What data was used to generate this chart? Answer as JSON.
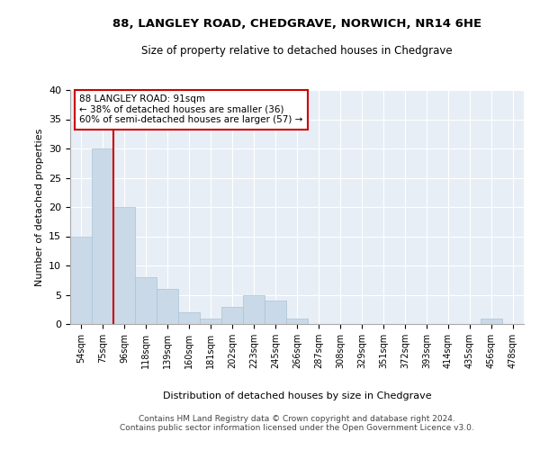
{
  "title1": "88, LANGLEY ROAD, CHEDGRAVE, NORWICH, NR14 6HE",
  "title2": "Size of property relative to detached houses in Chedgrave",
  "xlabel": "Distribution of detached houses by size in Chedgrave",
  "ylabel": "Number of detached properties",
  "categories": [
    "54sqm",
    "75sqm",
    "96sqm",
    "118sqm",
    "139sqm",
    "160sqm",
    "181sqm",
    "202sqm",
    "223sqm",
    "245sqm",
    "266sqm",
    "287sqm",
    "308sqm",
    "329sqm",
    "351sqm",
    "372sqm",
    "393sqm",
    "414sqm",
    "435sqm",
    "456sqm",
    "478sqm"
  ],
  "values": [
    15,
    30,
    20,
    8,
    6,
    2,
    1,
    3,
    5,
    4,
    1,
    0,
    0,
    0,
    0,
    0,
    0,
    0,
    0,
    1,
    0
  ],
  "bar_color": "#c9d9e8",
  "bar_edge_color": "#a8c4d8",
  "vline_color": "#cc0000",
  "annotation_text": "88 LANGLEY ROAD: 91sqm\n← 38% of detached houses are smaller (36)\n60% of semi-detached houses are larger (57) →",
  "annotation_box_color": "#ffffff",
  "annotation_box_edge": "#cc0000",
  "ylim": [
    0,
    40
  ],
  "yticks": [
    0,
    5,
    10,
    15,
    20,
    25,
    30,
    35,
    40
  ],
  "background_color": "#e8eef5",
  "footer": "Contains HM Land Registry data © Crown copyright and database right 2024.\nContains public sector information licensed under the Open Government Licence v3.0."
}
